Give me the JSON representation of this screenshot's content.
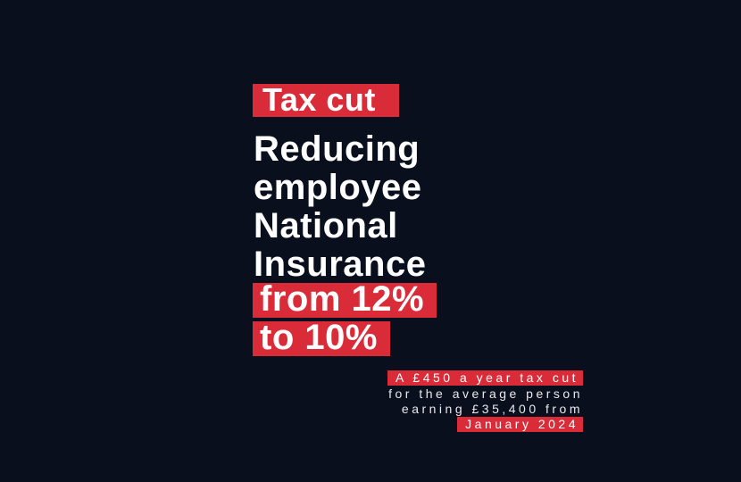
{
  "poster": {
    "badge_label": "Tax cut",
    "headline_lines": [
      "Reducing",
      "employee",
      "National",
      "Insurance"
    ],
    "highlight_lines": [
      "from 12%",
      "to 10%"
    ],
    "footnote_lines": [
      {
        "text": "A £450 a year tax cut",
        "highlighted": true
      },
      {
        "text": "for the average person",
        "highlighted": false
      },
      {
        "text": "earning £35,400 from",
        "highlighted": false
      },
      {
        "text": "January 2024",
        "highlighted": true
      }
    ],
    "colors": {
      "background": "#0A0F1E",
      "highlight_red": "#D92B38",
      "text_white": "#FFFFFF"
    }
  }
}
